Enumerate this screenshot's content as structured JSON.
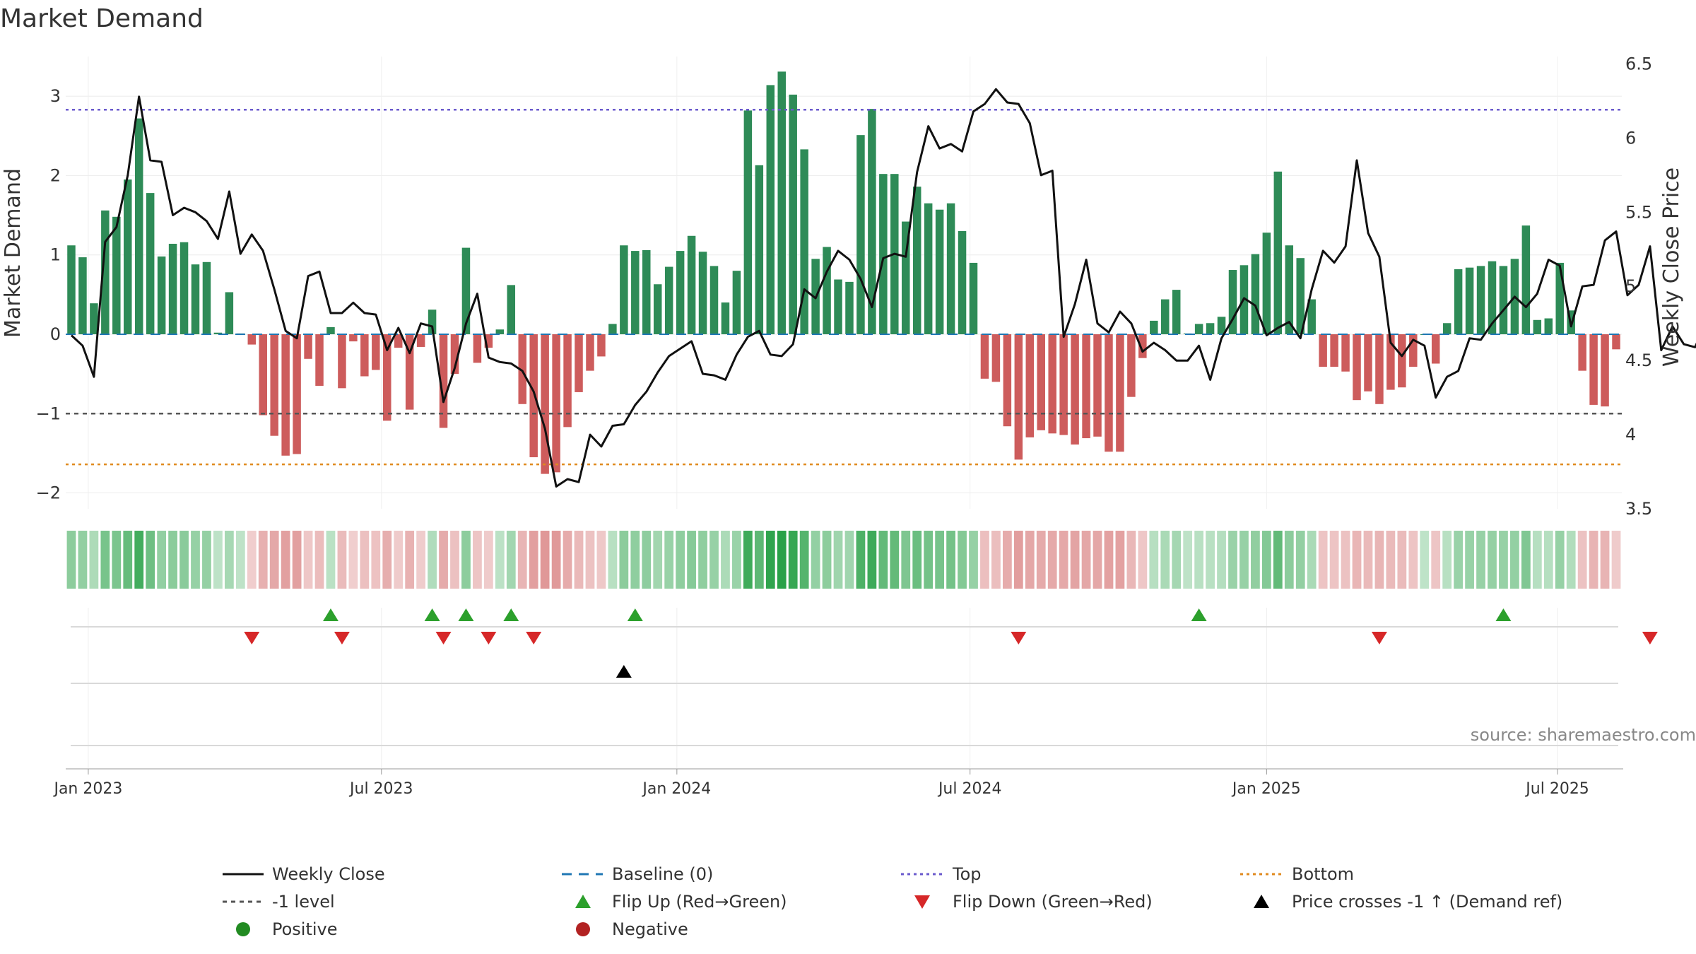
{
  "chart_data": {
    "type": "bar",
    "title": "Market Demand",
    "ylabel": "Market Demand",
    "y2label": "Weekly Close Price",
    "ylim": [
      -2.2,
      3.5
    ],
    "y2lim": [
      3.5,
      6.55
    ],
    "y_ticks": [
      3,
      2,
      1,
      0,
      -1,
      -2
    ],
    "y_tick_labels": [
      "3",
      "2",
      "1",
      "0",
      "−1",
      "−2"
    ],
    "y2_ticks": [
      6.5,
      6,
      5.5,
      5,
      4.5,
      4,
      3.5
    ],
    "y2_tick_labels": [
      "6.5",
      "6",
      "5.5",
      "5",
      "4.5",
      "4",
      "3.5"
    ],
    "x_ticks": [
      {
        "label": "Jan 2023",
        "week": 2
      },
      {
        "label": "Jul 2023",
        "week": 28
      },
      {
        "label": "Jan 2024",
        "week": 54.2
      },
      {
        "label": "Jul 2024",
        "week": 80.2
      },
      {
        "label": "Jan 2025",
        "week": 106.5
      },
      {
        "label": "Jul 2025",
        "week": 132.3
      }
    ],
    "reference_lines": {
      "top": 2.83,
      "minus_one": -1.0,
      "bottom": -1.64,
      "baseline": 0
    },
    "demand": [
      1.12,
      0.97,
      0.39,
      1.56,
      1.48,
      1.95,
      2.72,
      1.78,
      0.98,
      1.14,
      1.16,
      0.88,
      0.91,
      0.02,
      0.53,
      0.01,
      -0.13,
      -1.02,
      -1.28,
      -1.53,
      -1.51,
      -0.31,
      -0.65,
      0.09,
      -0.68,
      -0.09,
      -0.53,
      -0.45,
      -1.09,
      -0.17,
      -0.95,
      -0.16,
      0.31,
      -1.18,
      -0.5,
      1.09,
      -0.36,
      -0.17,
      0.06,
      0.62,
      -0.88,
      -1.55,
      -1.76,
      -1.74,
      -1.17,
      -0.73,
      -0.46,
      -0.28,
      0.13,
      1.12,
      1.05,
      1.06,
      0.63,
      0.85,
      1.05,
      1.24,
      1.04,
      0.86,
      0.4,
      0.8,
      2.82,
      2.13,
      3.14,
      3.31,
      3.02,
      2.33,
      0.95,
      1.1,
      0.69,
      0.66,
      2.51,
      2.84,
      2.02,
      2.02,
      1.42,
      1.86,
      1.65,
      1.57,
      1.65,
      1.3,
      0.9,
      -0.56,
      -0.6,
      -1.16,
      -1.58,
      -1.3,
      -1.21,
      -1.25,
      -1.27,
      -1.39,
      -1.31,
      -1.29,
      -1.48,
      -1.48,
      -0.79,
      -0.3,
      0.17,
      0.44,
      0.56,
      0.01,
      0.13,
      0.14,
      0.22,
      0.81,
      0.87,
      1.01,
      1.28,
      2.05,
      1.12,
      0.96,
      0.44,
      -0.41,
      -0.41,
      -0.47,
      -0.83,
      -0.72,
      -0.88,
      -0.7,
      -0.67,
      -0.41,
      0.0,
      -0.37,
      0.14,
      0.82,
      0.84,
      0.86,
      0.92,
      0.86,
      0.95,
      1.37,
      0.18,
      0.2,
      0.9,
      0.3,
      -0.46,
      -0.89,
      -0.91,
      -0.19
    ],
    "weekly_close": [
      4.67,
      4.6,
      4.39,
      5.3,
      5.4,
      5.75,
      6.28,
      5.85,
      5.84,
      5.48,
      5.53,
      5.5,
      5.44,
      5.32,
      5.64,
      5.22,
      5.35,
      5.24,
      4.98,
      4.7,
      4.65,
      5.07,
      5.1,
      4.82,
      4.82,
      4.89,
      4.82,
      4.81,
      4.57,
      4.72,
      4.55,
      4.75,
      4.73,
      4.22,
      4.45,
      4.75,
      4.95,
      4.52,
      4.49,
      4.48,
      4.43,
      4.29,
      4.04,
      3.65,
      3.7,
      3.68,
      4.0,
      3.92,
      4.06,
      4.07,
      4.2,
      4.29,
      4.42,
      4.53,
      4.58,
      4.63,
      4.41,
      4.4,
      4.37,
      4.54,
      4.66,
      4.7,
      4.54,
      4.53,
      4.61,
      4.98,
      4.92,
      5.1,
      5.24,
      5.18,
      5.05,
      4.86,
      5.19,
      5.22,
      5.2,
      5.77,
      6.08,
      5.93,
      5.96,
      5.91,
      6.18,
      6.23,
      6.33,
      6.24,
      6.23,
      6.1,
      5.75,
      5.78,
      4.66,
      4.88,
      5.18,
      4.75,
      4.69,
      4.83,
      4.75,
      4.56,
      4.62,
      4.57,
      4.5,
      4.5,
      4.6,
      4.37,
      4.65,
      4.78,
      4.92,
      4.87,
      4.67,
      4.72,
      4.76,
      4.65,
      4.98,
      5.24,
      5.16,
      5.27,
      5.85,
      5.36,
      5.2,
      4.62,
      4.53,
      4.64,
      4.6,
      4.25,
      4.39,
      4.43,
      4.65,
      4.64,
      4.75,
      4.84,
      4.93,
      4.86,
      4.95,
      5.18,
      5.14,
      4.73,
      5.0,
      5.01,
      5.31,
      5.37,
      4.94,
      5.01,
      5.27,
      4.57,
      4.73,
      4.61,
      4.59,
      4.76
    ],
    "flip_up_weeks": [
      23.5,
      32.5,
      35.5,
      39.5,
      50.5,
      100.5,
      127.5
    ],
    "flip_down_weeks": [
      16.5,
      24.5,
      33.5,
      37.5,
      41.5,
      84.5,
      116.5,
      140.5
    ],
    "price_cross_weeks": [
      49.5
    ]
  },
  "source_text": "source: sharemaestro.com",
  "colors": {
    "positive_bar": "#2e8b57",
    "negative_bar": "#cd5c5c",
    "price_line": "#111111",
    "baseline": "#1f77b4",
    "top_line": "#6a5acd",
    "minus_one_line": "#555555",
    "bottom_line": "#e08a1e",
    "flip_up": "#2ca02c",
    "flip_down": "#d62728",
    "price_cross": "#000000",
    "positive_dot": "#228b22",
    "negative_dot": "#b22222"
  },
  "legend": {
    "weekly_close": "Weekly Close",
    "baseline": "Baseline (0)",
    "top": "Top",
    "bottom": "Bottom",
    "minus_one": "-1 level",
    "flip_up": "Flip Up (Red→Green)",
    "flip_down": "Flip Down (Green→Red)",
    "price_cross": "Price crosses -1 ↑ (Demand ref)",
    "positive": "Positive",
    "negative": "Negative"
  }
}
